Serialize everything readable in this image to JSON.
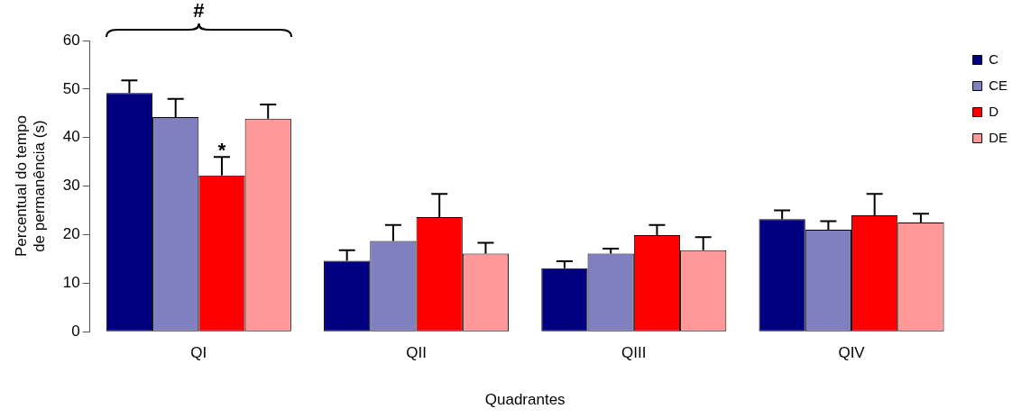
{
  "chart_data": {
    "type": "bar",
    "xlabel": "Quadrantes",
    "ylabel": "Percentual do tempo de permanência (s)",
    "categories": [
      "QI",
      "QII",
      "QIII",
      "QIV"
    ],
    "series": [
      {
        "name": "C",
        "color": "#000080",
        "values": [
          49.2,
          14.6,
          13.1,
          23.2
        ],
        "errors": [
          2.6,
          2.2,
          1.4,
          1.8
        ]
      },
      {
        "name": "CE",
        "color": "#8080c0",
        "values": [
          44.2,
          18.7,
          16.1,
          21.0
        ],
        "errors": [
          3.8,
          3.3,
          1.0,
          1.8
        ]
      },
      {
        "name": "D",
        "color": "#ff0000",
        "values": [
          32.2,
          23.6,
          19.9,
          24.0
        ],
        "errors": [
          3.8,
          4.8,
          2.1,
          4.4
        ]
      },
      {
        "name": "DE",
        "color": "#ff9999",
        "values": [
          43.9,
          16.1,
          16.8,
          22.5
        ],
        "errors": [
          2.9,
          2.2,
          2.7,
          1.8
        ]
      }
    ],
    "ylim": [
      0,
      60
    ],
    "yticks": [
      0,
      10,
      20,
      30,
      40,
      50,
      60
    ],
    "grid": false,
    "legend": "top right",
    "annotations": [
      "#",
      {
        "text": "*",
        "x": "QI",
        "y": 38
      }
    ]
  }
}
